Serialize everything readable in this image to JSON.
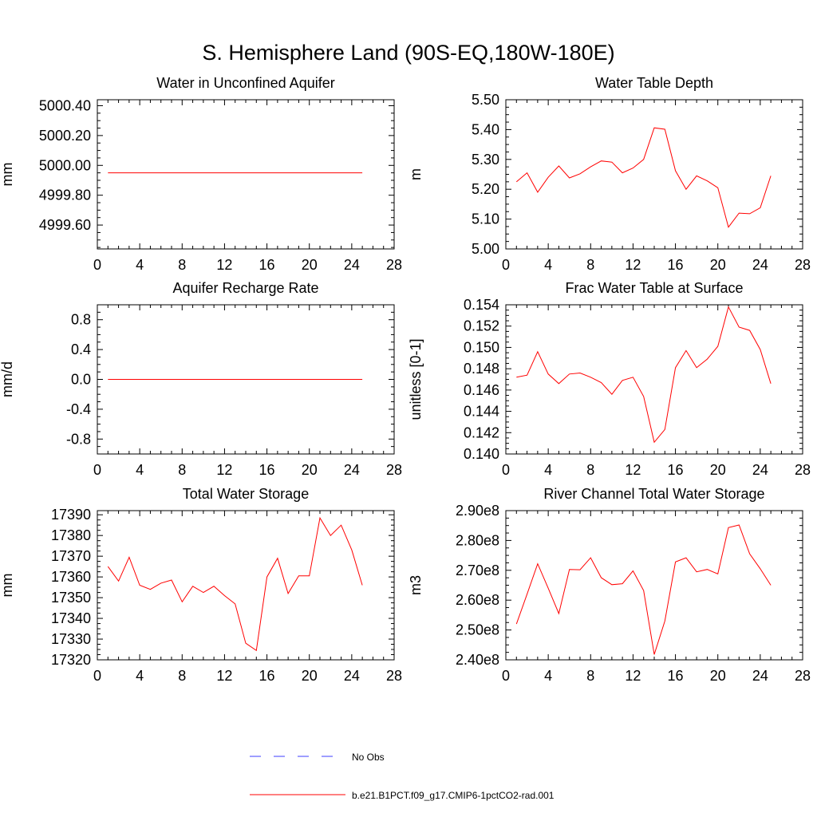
{
  "title": "S. Hemisphere Land (90S-EQ,180W-180E)",
  "legend": {
    "obs_label": "No Obs",
    "obs_color": "#3c3cff",
    "model_label": "b.e21.B1PCT.f09_g17.CMIP6-1pctCO2-rad.001",
    "model_color": "#ff0000"
  },
  "chart_data": [
    {
      "type": "line",
      "title": "Water in Unconfined Aquifer",
      "ylabel": "mm",
      "xlim": [
        0,
        28
      ],
      "xticks": [
        "0",
        "4",
        "8",
        "12",
        "16",
        "20",
        "24",
        "28"
      ],
      "ylim": [
        4999.44,
        5000.44
      ],
      "yticks": [
        "4999.60",
        "4999.80",
        "5000.00",
        "5000.20",
        "5000.40"
      ],
      "series": [
        {
          "x": [
            1,
            2,
            3,
            4,
            5,
            6,
            7,
            8,
            9,
            10,
            11,
            12,
            13,
            14,
            15,
            16,
            17,
            18,
            19,
            20,
            21,
            22,
            23,
            24,
            25
          ],
          "values": [
            4999.95,
            4999.95,
            4999.95,
            4999.95,
            4999.95,
            4999.95,
            4999.95,
            4999.95,
            4999.95,
            4999.95,
            4999.95,
            4999.95,
            4999.95,
            4999.95,
            4999.95,
            4999.95,
            4999.95,
            4999.95,
            4999.95,
            4999.95,
            4999.95,
            4999.95,
            4999.95,
            4999.95,
            4999.95
          ]
        }
      ]
    },
    {
      "type": "line",
      "title": "Water Table Depth",
      "ylabel": "m",
      "xlim": [
        0,
        28
      ],
      "xticks": [
        "0",
        "4",
        "8",
        "12",
        "16",
        "20",
        "24",
        "28"
      ],
      "ylim": [
        5.0,
        5.5
      ],
      "yticks": [
        "5.00",
        "5.10",
        "5.20",
        "5.30",
        "5.40",
        "5.50"
      ],
      "series": [
        {
          "x": [
            1,
            2,
            3,
            4,
            5,
            6,
            7,
            8,
            9,
            10,
            11,
            12,
            13,
            14,
            15,
            16,
            17,
            18,
            19,
            20,
            21,
            22,
            23,
            24,
            25
          ],
          "values": [
            5.225,
            5.255,
            5.19,
            5.24,
            5.278,
            5.238,
            5.252,
            5.275,
            5.295,
            5.291,
            5.255,
            5.271,
            5.3,
            5.406,
            5.401,
            5.262,
            5.2,
            5.245,
            5.228,
            5.205,
            5.073,
            5.12,
            5.118,
            5.138,
            5.245
          ]
        }
      ]
    },
    {
      "type": "line",
      "title": "Aquifer Recharge Rate",
      "ylabel": "mm/d",
      "xlim": [
        0,
        28
      ],
      "xticks": [
        "0",
        "4",
        "8",
        "12",
        "16",
        "20",
        "24",
        "28"
      ],
      "ylim": [
        -1.0,
        1.0
      ],
      "yticks": [
        "-0.8",
        "-0.4",
        "0.0",
        "0.4",
        "0.8"
      ],
      "series": [
        {
          "x": [
            1,
            2,
            3,
            4,
            5,
            6,
            7,
            8,
            9,
            10,
            11,
            12,
            13,
            14,
            15,
            16,
            17,
            18,
            19,
            20,
            21,
            22,
            23,
            24,
            25
          ],
          "values": [
            0,
            0,
            0,
            0,
            0,
            0,
            0,
            0,
            0,
            0,
            0,
            0,
            0,
            0,
            0,
            0,
            0,
            0,
            0,
            0,
            0,
            0,
            0,
            0,
            0
          ]
        }
      ]
    },
    {
      "type": "line",
      "title": "Frac Water Table at Surface",
      "ylabel": "unitless [0-1]",
      "xlim": [
        0,
        28
      ],
      "xticks": [
        "0",
        "4",
        "8",
        "12",
        "16",
        "20",
        "24",
        "28"
      ],
      "ylim": [
        0.14,
        0.154
      ],
      "yticks": [
        "0.140",
        "0.142",
        "0.144",
        "0.146",
        "0.148",
        "0.150",
        "0.152",
        "0.154"
      ],
      "series": [
        {
          "x": [
            1,
            2,
            3,
            4,
            5,
            6,
            7,
            8,
            9,
            10,
            11,
            12,
            13,
            14,
            15,
            16,
            17,
            18,
            19,
            20,
            21,
            22,
            23,
            24,
            25
          ],
          "values": [
            0.1472,
            0.1474,
            0.1496,
            0.1475,
            0.1466,
            0.1475,
            0.1476,
            0.1472,
            0.1467,
            0.1456,
            0.1469,
            0.1472,
            0.1454,
            0.1411,
            0.1423,
            0.1481,
            0.1497,
            0.1481,
            0.1489,
            0.1501,
            0.1538,
            0.1519,
            0.1516,
            0.1498,
            0.1466
          ]
        }
      ]
    },
    {
      "type": "line",
      "title": "Total Water Storage",
      "ylabel": "mm",
      "xlim": [
        0,
        28
      ],
      "xticks": [
        "0",
        "4",
        "8",
        "12",
        "16",
        "20",
        "24",
        "28"
      ],
      "ylim": [
        17320,
        17392
      ],
      "yticks": [
        "17320",
        "17330",
        "17340",
        "17350",
        "17360",
        "17370",
        "17380",
        "17390"
      ],
      "series": [
        {
          "x": [
            1,
            2,
            3,
            4,
            5,
            6,
            7,
            8,
            9,
            10,
            11,
            12,
            13,
            14,
            15,
            16,
            17,
            18,
            19,
            20,
            21,
            22,
            23,
            24,
            25
          ],
          "values": [
            17365,
            17358,
            17369.5,
            17356,
            17354,
            17357,
            17358.5,
            17348,
            17355.5,
            17352.5,
            17355.5,
            17351,
            17347,
            17328,
            17324.5,
            17360,
            17369,
            17352,
            17360.5,
            17360.5,
            17388.5,
            17380,
            17385,
            17373,
            17356
          ]
        }
      ]
    },
    {
      "type": "line",
      "title": "River Channel Total Water Storage",
      "ylabel": "m3",
      "xlim": [
        0,
        28
      ],
      "xticks": [
        "0",
        "4",
        "8",
        "12",
        "16",
        "20",
        "24",
        "28"
      ],
      "ylim": [
        240000000.0,
        290000000.0
      ],
      "yticks": [
        "2.40e8",
        "2.50e8",
        "2.60e8",
        "2.70e8",
        "2.80e8",
        "2.90e8"
      ],
      "series": [
        {
          "x": [
            1,
            2,
            3,
            4,
            5,
            6,
            7,
            8,
            9,
            10,
            11,
            12,
            13,
            14,
            15,
            16,
            17,
            18,
            19,
            20,
            21,
            22,
            23,
            24,
            25
          ],
          "values": [
            252000000.0,
            262000000.0,
            272200000.0,
            264000000.0,
            255500000.0,
            270300000.0,
            270200000.0,
            274200000.0,
            267500000.0,
            265200000.0,
            265500000.0,
            269800000.0,
            263200000.0,
            241800000.0,
            253000000.0,
            272800000.0,
            274200000.0,
            269500000.0,
            270300000.0,
            268800000.0,
            284300000.0,
            285200000.0,
            275500000.0,
            270500000.0,
            265000000.0
          ]
        }
      ]
    }
  ]
}
